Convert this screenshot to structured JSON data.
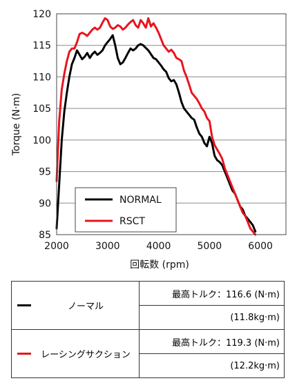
{
  "chart_data": {
    "type": "line",
    "xlabel": "回転数 (rpm)",
    "ylabel": "Torque (N·m)",
    "xlim": [
      2000,
      6500
    ],
    "ylim": [
      85,
      120
    ],
    "xticks": [
      2000,
      3000,
      4000,
      5000,
      6000
    ],
    "yticks": [
      85,
      90,
      95,
      100,
      105,
      110,
      115,
      120
    ],
    "grid": "horizontal",
    "legend_position": "lower-left",
    "series": [
      {
        "name": "NORMAL",
        "color": "#000000",
        "x": [
          2000,
          2050,
          2100,
          2150,
          2200,
          2250,
          2300,
          2350,
          2400,
          2450,
          2500,
          2550,
          2600,
          2650,
          2700,
          2750,
          2800,
          2850,
          2900,
          2950,
          3000,
          3050,
          3100,
          3150,
          3200,
          3250,
          3300,
          3350,
          3400,
          3450,
          3500,
          3550,
          3600,
          3650,
          3700,
          3750,
          3800,
          3850,
          3900,
          3950,
          4000,
          4050,
          4100,
          4150,
          4200,
          4250,
          4300,
          4350,
          4400,
          4450,
          4500,
          4550,
          4600,
          4650,
          4700,
          4750,
          4800,
          4850,
          4900,
          4950,
          5000,
          5050,
          5100,
          5150,
          5200,
          5250,
          5300,
          5350,
          5400,
          5450,
          5500,
          5550,
          5600,
          5650,
          5700,
          5750,
          5800,
          5850,
          5900
        ],
        "values": [
          86.0,
          93.0,
          100.0,
          104.5,
          107.5,
          110.0,
          112.0,
          113.0,
          114.2,
          113.5,
          112.8,
          113.2,
          113.8,
          113.0,
          113.6,
          114.0,
          113.5,
          113.8,
          114.2,
          115.0,
          115.5,
          116.0,
          116.6,
          115.0,
          113.0,
          112.0,
          112.3,
          113.0,
          113.8,
          114.5,
          114.2,
          114.5,
          115.0,
          115.2,
          115.0,
          114.6,
          114.2,
          113.6,
          113.0,
          112.8,
          112.3,
          111.8,
          111.2,
          110.8,
          109.8,
          109.3,
          109.5,
          108.8,
          107.5,
          106.0,
          105.0,
          104.5,
          104.0,
          103.5,
          103.2,
          102.0,
          101.0,
          100.5,
          99.5,
          99.0,
          100.5,
          99.5,
          97.5,
          96.8,
          96.5,
          96.0,
          95.0,
          94.0,
          93.0,
          92.0,
          91.5,
          90.5,
          89.5,
          89.0,
          88.0,
          87.5,
          87.0,
          86.5,
          85.5
        ]
      },
      {
        "name": "RSCT",
        "color": "#e8141e",
        "x": [
          2000,
          2050,
          2100,
          2150,
          2200,
          2250,
          2300,
          2350,
          2400,
          2450,
          2500,
          2550,
          2600,
          2650,
          2700,
          2750,
          2800,
          2850,
          2900,
          2950,
          3000,
          3050,
          3100,
          3150,
          3200,
          3250,
          3300,
          3350,
          3400,
          3450,
          3500,
          3550,
          3600,
          3650,
          3700,
          3750,
          3800,
          3850,
          3900,
          3950,
          4000,
          4050,
          4100,
          4150,
          4200,
          4250,
          4300,
          4350,
          4400,
          4450,
          4500,
          4550,
          4600,
          4650,
          4700,
          4750,
          4800,
          4850,
          4900,
          4950,
          5000,
          5050,
          5100,
          5150,
          5200,
          5250,
          5300,
          5350,
          5400,
          5450,
          5500,
          5550,
          5600,
          5650,
          5700,
          5750,
          5800,
          5850,
          5900
        ],
        "values": [
          93.5,
          103.0,
          108.0,
          110.5,
          112.5,
          114.0,
          114.5,
          114.5,
          115.5,
          116.8,
          117.0,
          116.8,
          116.5,
          117.0,
          117.5,
          117.8,
          117.5,
          117.8,
          118.6,
          119.3,
          119.0,
          118.0,
          117.6,
          117.8,
          118.2,
          118.0,
          117.5,
          117.8,
          118.3,
          118.7,
          119.0,
          118.2,
          117.8,
          119.0,
          118.5,
          117.8,
          119.3,
          118.0,
          118.5,
          117.8,
          117.0,
          116.0,
          115.0,
          114.5,
          114.0,
          114.3,
          113.8,
          113.0,
          112.8,
          112.5,
          111.0,
          110.0,
          108.8,
          107.5,
          107.0,
          106.5,
          105.8,
          105.0,
          104.5,
          103.5,
          103.0,
          100.5,
          99.2,
          98.5,
          97.8,
          97.0,
          95.5,
          94.5,
          93.5,
          92.5,
          91.5,
          90.5,
          89.5,
          88.5,
          88.0,
          87.0,
          86.0,
          85.5,
          85.0
        ]
      }
    ]
  },
  "legend": {
    "items": [
      {
        "label": "NORMAL",
        "color": "#000000"
      },
      {
        "label": "RSCT",
        "color": "#e8141e"
      }
    ]
  },
  "table": {
    "rows": [
      {
        "name": "ノーマル",
        "color": "#000000",
        "max_torque": "最高トルク：116.6 (N·m)",
        "max_torque_kgm": "(11.8kg·m)"
      },
      {
        "name": "レーシングサクション",
        "color": "#e8141e",
        "max_torque": "最高トルク：119.3 (N·m)",
        "max_torque_kgm": "(12.2kg·m)"
      }
    ]
  }
}
